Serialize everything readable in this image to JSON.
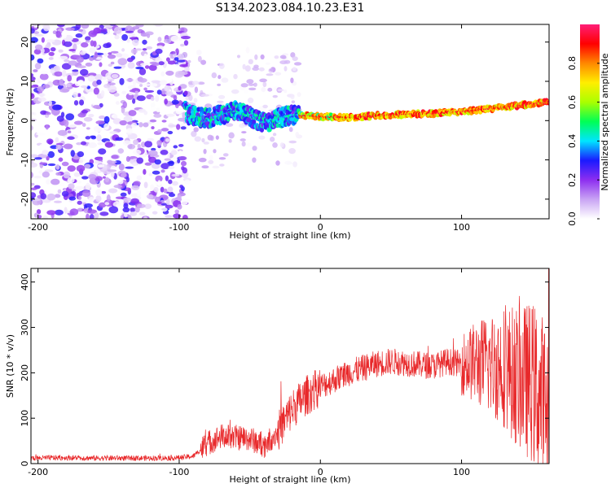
{
  "title": "S134.2023.084.10.23.E31",
  "chart_data": [
    {
      "type": "heatmap",
      "xlabel": "Height of straight line (km)",
      "ylabel": "Frequency (Hz)",
      "xlim": [
        -205,
        162
      ],
      "ylim": [
        -25,
        24.5
      ],
      "xticks": [
        -200,
        -100,
        0,
        100
      ],
      "yticks": [
        -20,
        -10,
        0,
        10,
        20
      ],
      "colorbar": {
        "label": "Normalized spectral amplitude",
        "range": [
          0,
          1
        ],
        "ticks": [
          "0.0",
          "0.2",
          "0.4",
          "0.6",
          "0.8"
        ],
        "colors": [
          "#ffffff",
          "#c9a4f4",
          "#8d2ef0",
          "#1a1aff",
          "#00e5ff",
          "#00ff55",
          "#aaff00",
          "#ffee00",
          "#ff8800",
          "#ff0000",
          "#ff1e78"
        ]
      },
      "ridge_line": {
        "description": "dominant frequency ridge",
        "x": [
          -95,
          -80,
          -60,
          -40,
          -20,
          0,
          20,
          40,
          60,
          80,
          100,
          120,
          140,
          160
        ],
        "y": [
          1.5,
          0.5,
          2.5,
          -0.5,
          1.5,
          1.0,
          0.8,
          1.3,
          1.6,
          1.8,
          2.3,
          3.0,
          3.8,
          4.8
        ]
      }
    },
    {
      "type": "line",
      "xlabel": "Height of straight line (km)",
      "ylabel": "SNR (10 * v/v)",
      "xlim": [
        -205,
        162
      ],
      "ylim": [
        0,
        430
      ],
      "xticks": [
        -200,
        -100,
        0,
        100
      ],
      "yticks": [
        0,
        100,
        200,
        300,
        400
      ],
      "series": [
        {
          "color": "#e8282a",
          "x": [
            -205,
            -180,
            -160,
            -140,
            -120,
            -100,
            -90,
            -80,
            -70,
            -60,
            -50,
            -40,
            -30,
            -20,
            -10,
            0,
            10,
            20,
            30,
            40,
            50,
            60,
            70,
            80,
            90,
            100,
            110,
            120,
            130,
            140,
            150,
            160
          ],
          "y": [
            12,
            13,
            12,
            12,
            12,
            13,
            16,
            45,
            60,
            58,
            55,
            40,
            70,
            120,
            150,
            170,
            185,
            200,
            210,
            220,
            225,
            222,
            218,
            215,
            225,
            220,
            222,
            218,
            215,
            190,
            180,
            120
          ]
        }
      ]
    }
  ]
}
